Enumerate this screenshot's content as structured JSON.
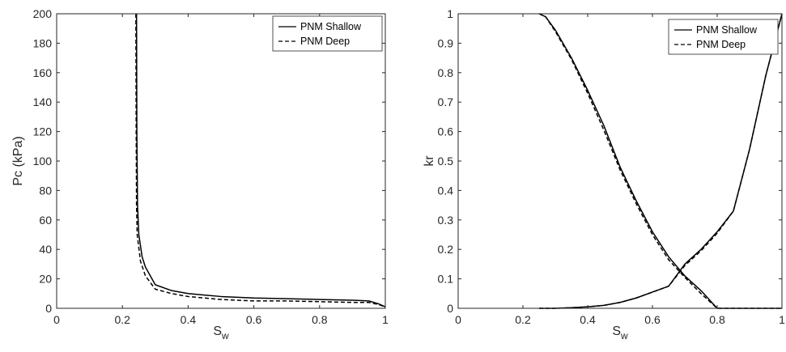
{
  "chart_data": [
    {
      "type": "line",
      "xlabel": "S",
      "xlabel_sub": "w",
      "ylabel": "Pc (kPa)",
      "xlim": [
        0,
        1
      ],
      "ylim": [
        0,
        200
      ],
      "xticks": [
        0,
        0.2,
        0.4,
        0.6,
        0.8,
        1
      ],
      "xtick_labels": [
        "0",
        "0.2",
        "0.4",
        "0.6",
        "0.8",
        "1"
      ],
      "yticks": [
        0,
        20,
        40,
        60,
        80,
        100,
        120,
        140,
        160,
        180,
        200
      ],
      "ytick_labels": [
        "0",
        "20",
        "40",
        "60",
        "80",
        "100",
        "120",
        "140",
        "160",
        "180",
        "200"
      ],
      "grid": false,
      "legend": "top-right",
      "series": [
        {
          "name": "PNM Shallow",
          "style": "solid",
          "color": "#000000",
          "points": [
            [
              0.243,
              200
            ],
            [
              0.244,
              120
            ],
            [
              0.246,
              70
            ],
            [
              0.25,
              50
            ],
            [
              0.26,
              35
            ],
            [
              0.27,
              28
            ],
            [
              0.3,
              16
            ],
            [
              0.35,
              12
            ],
            [
              0.4,
              10
            ],
            [
              0.5,
              8
            ],
            [
              0.6,
              7
            ],
            [
              0.7,
              6.5
            ],
            [
              0.8,
              6
            ],
            [
              0.9,
              5.5
            ],
            [
              0.95,
              5
            ],
            [
              0.98,
              3
            ],
            [
              1.0,
              1
            ]
          ]
        },
        {
          "name": "PNM Deep",
          "style": "dashed",
          "color": "#000000",
          "points": [
            [
              0.241,
              200
            ],
            [
              0.242,
              120
            ],
            [
              0.243,
              70
            ],
            [
              0.245,
              50
            ],
            [
              0.255,
              32
            ],
            [
              0.27,
              22
            ],
            [
              0.3,
              13
            ],
            [
              0.35,
              10
            ],
            [
              0.4,
              8
            ],
            [
              0.5,
              6
            ],
            [
              0.6,
              5
            ],
            [
              0.7,
              5
            ],
            [
              0.8,
              4.5
            ],
            [
              0.9,
              4
            ],
            [
              0.95,
              4
            ],
            [
              0.98,
              2.5
            ],
            [
              1.0,
              1
            ]
          ]
        }
      ]
    },
    {
      "type": "line",
      "xlabel": "S",
      "xlabel_sub": "w",
      "ylabel": "kr",
      "xlim": [
        0,
        1
      ],
      "ylim": [
        0,
        1
      ],
      "xticks": [
        0,
        0.2,
        0.4,
        0.6,
        0.8,
        1
      ],
      "xtick_labels": [
        "0",
        "0.2",
        "0.4",
        "0.6",
        "0.8",
        "1"
      ],
      "yticks": [
        0,
        0.1,
        0.2,
        0.3,
        0.4,
        0.5,
        0.6,
        0.7,
        0.8,
        0.9,
        1
      ],
      "ytick_labels": [
        "0",
        "0.1",
        "0.2",
        "0.3",
        "0.4",
        "0.5",
        "0.6",
        "0.7",
        "0.8",
        "0.9",
        "1"
      ],
      "grid": false,
      "legend": "top-right",
      "series": [
        {
          "name": "PNM Shallow",
          "style": "solid",
          "color": "#000000",
          "curves": [
            [
              [
                0.25,
                0.0
              ],
              [
                0.3,
                0.0
              ],
              [
                0.35,
                0.002
              ],
              [
                0.4,
                0.005
              ],
              [
                0.45,
                0.01
              ],
              [
                0.5,
                0.02
              ],
              [
                0.55,
                0.035
              ],
              [
                0.6,
                0.055
              ],
              [
                0.65,
                0.075
              ],
              [
                0.7,
                0.15
              ],
              [
                0.75,
                0.2
              ],
              [
                0.8,
                0.26
              ],
              [
                0.85,
                0.33
              ],
              [
                0.9,
                0.54
              ],
              [
                0.95,
                0.79
              ],
              [
                1.0,
                1.0
              ]
            ],
            [
              [
                0.25,
                1.0
              ],
              [
                0.27,
                0.99
              ],
              [
                0.3,
                0.945
              ],
              [
                0.35,
                0.85
              ],
              [
                0.4,
                0.74
              ],
              [
                0.45,
                0.62
              ],
              [
                0.5,
                0.48
              ],
              [
                0.55,
                0.365
              ],
              [
                0.6,
                0.26
              ],
              [
                0.65,
                0.175
              ],
              [
                0.7,
                0.11
              ],
              [
                0.75,
                0.06
              ],
              [
                0.8,
                0.0
              ],
              [
                0.85,
                0.0
              ],
              [
                0.9,
                0.0
              ],
              [
                0.95,
                0.0
              ],
              [
                1.0,
                0.0
              ]
            ]
          ]
        },
        {
          "name": "PNM Deep",
          "style": "dashed",
          "color": "#000000",
          "curves": [
            [
              [
                0.25,
                0.0
              ],
              [
                0.3,
                0.0
              ],
              [
                0.35,
                0.002
              ],
              [
                0.4,
                0.005
              ],
              [
                0.45,
                0.01
              ],
              [
                0.5,
                0.02
              ],
              [
                0.55,
                0.035
              ],
              [
                0.6,
                0.055
              ],
              [
                0.65,
                0.075
              ],
              [
                0.7,
                0.145
              ],
              [
                0.75,
                0.195
              ],
              [
                0.8,
                0.255
              ],
              [
                0.85,
                0.33
              ],
              [
                0.9,
                0.54
              ],
              [
                0.95,
                0.79
              ],
              [
                1.0,
                1.0
              ]
            ],
            [
              [
                0.25,
                1.0
              ],
              [
                0.27,
                0.99
              ],
              [
                0.3,
                0.94
              ],
              [
                0.35,
                0.845
              ],
              [
                0.4,
                0.73
              ],
              [
                0.45,
                0.605
              ],
              [
                0.5,
                0.47
              ],
              [
                0.55,
                0.355
              ],
              [
                0.6,
                0.25
              ],
              [
                0.65,
                0.165
              ],
              [
                0.7,
                0.105
              ],
              [
                0.75,
                0.05
              ],
              [
                0.8,
                0.0
              ],
              [
                0.85,
                0.0
              ],
              [
                0.9,
                0.0
              ],
              [
                0.95,
                0.0
              ],
              [
                1.0,
                0.0
              ]
            ]
          ]
        }
      ]
    }
  ]
}
